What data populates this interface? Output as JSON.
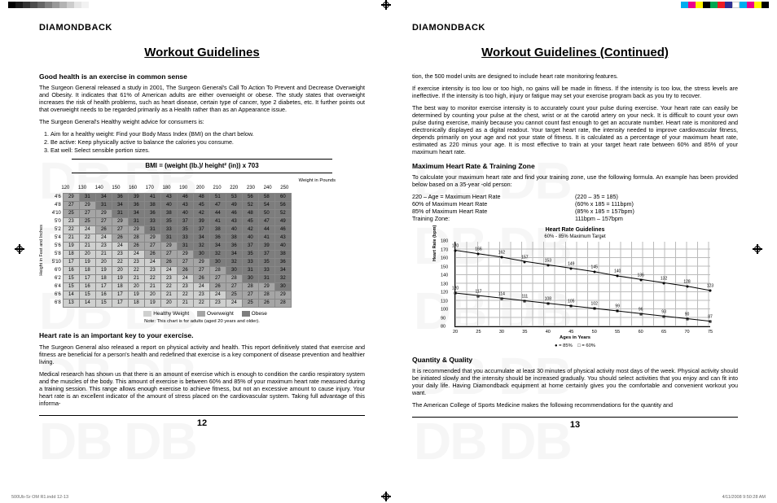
{
  "brand": "DIAMONDBACK",
  "left": {
    "title": "Workout Guidelines",
    "sub1": "Good health is an exercise in common sense",
    "p1": "The Surgeon General released a study in 2001, The Surgeon General's Call To Action To Prevent and Decrease Overweight and Obesity. It indicates that 61% of American adults are either overweight or obese. The study states that overweight increases the risk of health problems, such as heart disease, certain type of cancer, type 2 diabetes, etc. It further points out that overweight needs to be regarded primarily as a Health rather than as an Appearance issue.",
    "p2": "The Surgeon General's Healthy weight advice for consumers is:",
    "ol": [
      "Aim for a healthy weight: Find your Body Mass Index (BMI) on the chart below.",
      "Be active: Keep physically active to balance the calories you consume.",
      "Eat well: Select sensible portion sizes."
    ],
    "formula": "BMI = (weight (lb.)/ height² (in)) x 703",
    "weights_label": "Weight in Pounds",
    "weights": [
      "120",
      "130",
      "140",
      "150",
      "160",
      "170",
      "180",
      "190",
      "200",
      "210",
      "220",
      "230",
      "240",
      "250"
    ],
    "heights_label": "Height in Feet and Inches",
    "heights": [
      "4'6",
      "4'8",
      "4'10",
      "5'0",
      "5'2",
      "5'4",
      "5'6",
      "5'8",
      "5'10",
      "6'0",
      "6'2",
      "6'4",
      "6'6",
      "6'8"
    ],
    "bmi": [
      [
        29,
        31,
        34,
        36,
        39,
        41,
        43,
        46,
        48,
        51,
        53,
        56,
        58,
        60
      ],
      [
        27,
        29,
        31,
        34,
        36,
        38,
        40,
        43,
        45,
        47,
        49,
        52,
        54,
        56
      ],
      [
        25,
        27,
        29,
        31,
        34,
        36,
        38,
        40,
        42,
        44,
        46,
        48,
        50,
        52
      ],
      [
        23,
        25,
        27,
        29,
        31,
        33,
        35,
        37,
        39,
        41,
        43,
        45,
        47,
        49
      ],
      [
        22,
        24,
        26,
        27,
        29,
        31,
        33,
        35,
        37,
        38,
        40,
        42,
        44,
        46
      ],
      [
        21,
        22,
        24,
        26,
        28,
        29,
        31,
        33,
        34,
        36,
        38,
        40,
        41,
        43
      ],
      [
        19,
        21,
        23,
        24,
        26,
        27,
        29,
        31,
        32,
        34,
        36,
        37,
        39,
        40
      ],
      [
        18,
        20,
        21,
        23,
        24,
        26,
        27,
        29,
        30,
        32,
        34,
        35,
        37,
        38
      ],
      [
        17,
        19,
        20,
        22,
        23,
        24,
        26,
        27,
        29,
        30,
        32,
        33,
        35,
        36
      ],
      [
        16,
        18,
        19,
        20,
        22,
        23,
        24,
        26,
        27,
        28,
        30,
        31,
        33,
        34
      ],
      [
        15,
        17,
        18,
        19,
        21,
        22,
        23,
        24,
        26,
        27,
        28,
        30,
        31,
        32
      ],
      [
        15,
        16,
        17,
        18,
        20,
        21,
        22,
        23,
        24,
        26,
        27,
        28,
        29,
        30
      ],
      [
        14,
        15,
        16,
        17,
        19,
        20,
        21,
        22,
        23,
        24,
        25,
        27,
        28,
        29
      ],
      [
        13,
        14,
        15,
        17,
        18,
        19,
        20,
        21,
        22,
        23,
        24,
        25,
        26,
        28
      ]
    ],
    "legend": {
      "hw": "Healthy Weight",
      "ow": "Overweight",
      "ob": "Obese"
    },
    "note": "Note: This chart is for adults (aged 20 years and older).",
    "sub2": "Heart rate is an important key to your exercise.",
    "p3": "The Surgeon General also released a report on physical activity and health. This report definitively stated that exercise and fitness are beneficial for a person's health and redefined that exercise is a key component of disease prevention and healthier living.",
    "p4": "Medical research has shown us that there is an amount of exercise which is enough to condition the cardio respiratory system and the muscles of the body. This amount of exercise is between 60% and 85% of your maximum heart rate measured during a training session. This range allows enough exercise to achieve fitness, but not an excessive amount to cause injury. Your heart rate is an excellent indicator of the amount of stress placed on the cardiovascular system. Taking full advantage of this informa-",
    "pagenum": "12"
  },
  "right": {
    "title": "Workout Guidelines (Continued)",
    "p1": "tion, the 500 model units are designed to include heart rate monitoring features.",
    "p2": "If exercise intensity is too low or too high, no gains will be made in fitness. If the intensity is too low, the stress levels are ineffective. If the intensity is too high, injury or fatigue may set your exercise program back as you try to recover.",
    "p3": "The best way to monitor exercise intensity is to accurately count your pulse during exercise. Your heart rate can easily be determined by counting your pulse at the chest, wrist or at the carotid artery on your neck. It is difficult to count your own pulse during exercise, mainly because you cannot count fast enough to get an accurate number. Heart rate is monitored and electronically displayed as a digital readout. Your target heart rate, the intensity needed to improve cardiovascular fitness, depends primarily on your age and not your state of fitness. It is calculated as a percentage of your maximum heart rate, estimated as 220 minus your age. It is most effective to train at your target heart rate between 60% and 85% of your maximum heart rate.",
    "sub1": "Maximum Heart Rate & Training Zone",
    "p4": "To calculate your maximum heart rate and find your training zone, use the following formula. An example has been provided below based on a 35-year -old person:",
    "calc": {
      "l1": "220 – Age = Maximum Heart Rate",
      "r1": "(220 – 35 = 185)",
      "l2": "60% of Maximum Heart Rate",
      "r2": "(60% x 185 = 111bpm)",
      "l3": "85% of Maximum Heart Rate",
      "r3": "(85% x 185 = 157bpm)",
      "l4": "Training Zone:",
      "r4": "111bpm – 157bpm"
    },
    "chart": {
      "title": "Heart Rate Guidelines",
      "sub": "60% - 85% Maximum Target",
      "ylabel": "Heart Rate (bpm)",
      "ymin": 80,
      "ymax": 180,
      "ystep": 10,
      "xmin": 20,
      "xmax": 75,
      "xstep": 5,
      "xlabel": "Ages in Years",
      "series85": [
        170,
        166,
        162,
        157,
        153,
        149,
        145,
        140,
        136,
        132,
        128,
        123
      ],
      "series60": [
        120,
        117,
        114,
        111,
        108,
        105,
        102,
        99,
        96,
        93,
        90,
        87
      ],
      "legend85": "= 85%",
      "legend60": "= 60%"
    },
    "sub2": "Quantity & Quality",
    "p5": "It is recommended that you accumulate at least 30 minutes of physical activity most days of the week. Physical activity should be initiated slowly and the intensity should be increased gradually. You should select activities that you enjoy and can fit into your daily life. Having Diamondback equipment at home certainly gives you the comfortable and convenient workout you want.",
    "p6": "The American College of Sports Medicine makes the following recommendations for the quantity and",
    "pagenum": "13"
  },
  "colorbar": [
    "#00aeef",
    "#ec008c",
    "#fff200",
    "#000000",
    "#00a651",
    "#ed1c24",
    "#2e3192",
    "#ffffff",
    "#00aeef",
    "#ec008c",
    "#fff200",
    "#000000"
  ],
  "graybar_left": [
    "#000",
    "#1a1a1a",
    "#333",
    "#4d4d4d",
    "#666",
    "#808080",
    "#999",
    "#b3b3b3",
    "#ccc",
    "#e6e6e6",
    "#f2f2f2",
    "#fff"
  ],
  "footer_left": "500Ub-Sr OM R1.indd   12-13",
  "footer_right": "4/11/2008   9:50:28 AM"
}
